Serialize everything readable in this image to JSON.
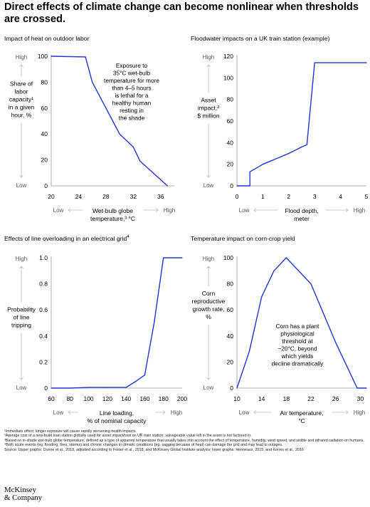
{
  "page": {
    "title": "Direct effects of climate change can become nonlinear when thresholds are crossed."
  },
  "colors": {
    "line": "#1f34d8",
    "axis": "#999999",
    "text": "#000000",
    "muted": "#555555"
  },
  "chart_data": [
    {
      "type": "line",
      "title": "Impact of heat on outdoor labor",
      "x": [
        20,
        25,
        26,
        30,
        32,
        33,
        37
      ],
      "values": [
        100,
        99.5,
        80,
        40,
        30,
        19,
        0
      ],
      "xlim": [
        20,
        38
      ],
      "ylim": [
        0,
        100
      ],
      "xticks": [
        20,
        24,
        28,
        32,
        36
      ],
      "yticks": [
        0,
        20,
        40,
        60,
        80,
        100
      ],
      "ylabel_lines": [
        "Share of",
        "labor",
        "capacity¹",
        "in a given",
        "hour, %"
      ],
      "xlabel_lines": [
        "Wet-bulb globe",
        "temperature,³ °C"
      ],
      "high": "High",
      "low": "Low",
      "annotation_lines": [
        "Exposure to",
        "35°C wet-bulb",
        "temperature for more",
        "than 4–5 hours",
        "is lethal for a",
        "healthy human",
        "resting in",
        "the shade"
      ]
    },
    {
      "type": "line",
      "title": "Floodwater impacts on a UK train station (example)",
      "x": [
        0,
        0.5,
        0.5,
        1,
        1.5,
        2,
        2.5,
        2.7,
        3,
        5
      ],
      "values": [
        0,
        0,
        13,
        20,
        25,
        30,
        36,
        38,
        114,
        114
      ],
      "xlim": [
        0,
        5
      ],
      "ylim": [
        0,
        120
      ],
      "xticks": [
        0,
        1,
        2,
        3,
        4,
        5
      ],
      "yticks": [
        0,
        20,
        40,
        60,
        80,
        100,
        120
      ],
      "ylabel_lines": [
        "Asset",
        "impact,²",
        "$ million"
      ],
      "xlabel_lines": [
        "Flood depth,",
        "meter"
      ],
      "high": "High",
      "low": "Low"
    },
    {
      "type": "line",
      "title": "Effects of line overloading in an electrical grid",
      "title_sup": "4",
      "x": [
        60,
        80,
        100,
        120,
        140,
        150,
        160,
        170,
        180,
        200
      ],
      "values": [
        0,
        0,
        0.005,
        0.005,
        0.005,
        0.05,
        0.1,
        0.5,
        1.0,
        1.0
      ],
      "xlim": [
        60,
        200
      ],
      "ylim": [
        0,
        1.0
      ],
      "xticks": [
        60,
        80,
        100,
        120,
        140,
        160,
        180,
        200
      ],
      "yticks": [
        0,
        0.2,
        0.4,
        0.6,
        0.8,
        1.0
      ],
      "ytick_labels": [
        "0",
        "0.2",
        "0.4",
        "0.6",
        "0.8",
        "1.0"
      ],
      "ylabel_lines": [
        "Probability",
        "of line",
        "tripping"
      ],
      "xlabel_lines": [
        "Line loading,",
        "% of nominal capacity"
      ],
      "high": "High",
      "low": "Low"
    },
    {
      "type": "line",
      "title": "Temperature impact on corn-crop yield",
      "x": [
        10,
        12,
        14,
        16,
        18,
        20,
        22,
        26,
        29.5,
        31
      ],
      "values": [
        0,
        28,
        70,
        90,
        100,
        90,
        80,
        35,
        0,
        0
      ],
      "xlim": [
        10,
        31
      ],
      "ylim": [
        0,
        100
      ],
      "xticks": [
        10,
        14,
        18,
        22,
        26,
        30
      ],
      "yticks": [
        0,
        20,
        40,
        60,
        80,
        100
      ],
      "ylabel_lines": [
        "Corn",
        "reproductive",
        "growth rate,",
        "%"
      ],
      "xlabel_lines": [
        "Air temperature,",
        "°C"
      ],
      "high": "High",
      "low": "Low",
      "annotation_lines": [
        "Corn has a plant",
        "physiological",
        "threshold at",
        "~20°C, beyond",
        "which yields",
        "decline dramatically"
      ]
    }
  ],
  "footnotes": [
    "¹Immediate effect; longer exposure will cause rapidly worsening health impacts.",
    "²Average cost of a new-build train station globally used for asset impact/cost on UK train station; salvageable value left in the asset is not factored in.",
    "³Based on in-shade wet-bulb globe temperature, defined as a type of apparent temperature that usually takes into account the effect of temperature, humidity, wind speed, and visible and infrared radiation on humans.",
    "⁴Both acute events (eg, flooding, fires, storms) and chronic changes in climatic conditions (eg, sagging because of heat) can damage the grid and may lead to outages.",
    "Source: Upper graphs: Dunne et al., 2013, adjusted according to Foster et al., 2018, and McKinsey Global Institute analysis; lower graphs: Henneaux, 2015, and Korres et al., 2016"
  ],
  "logo_lines": [
    "McKinsey",
    "& Company"
  ]
}
